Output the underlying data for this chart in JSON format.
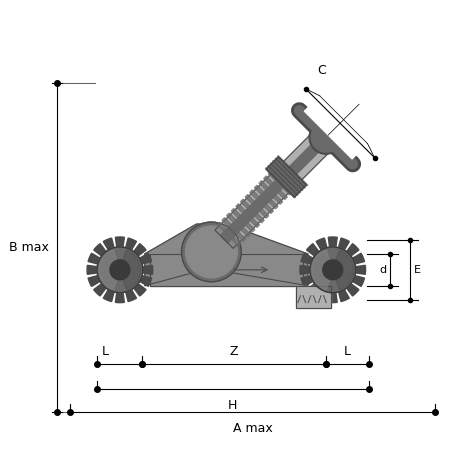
{
  "bg_color": "#ffffff",
  "lc": "#000000",
  "gray1": "#4a4a4a",
  "gray2": "#6a6a6a",
  "gray3": "#898989",
  "gray4": "#b0b0b0",
  "gray5": "#cecece",
  "gray6": "#3a3a3a",
  "labels": {
    "A_max": "A max",
    "B_max": "B max",
    "C": "C",
    "H": "H",
    "Z": "Z",
    "L": "L",
    "d": "d",
    "E": "E"
  },
  "fs": 9,
  "fig_w": 4.7,
  "fig_h": 4.7,
  "dpi": 100
}
